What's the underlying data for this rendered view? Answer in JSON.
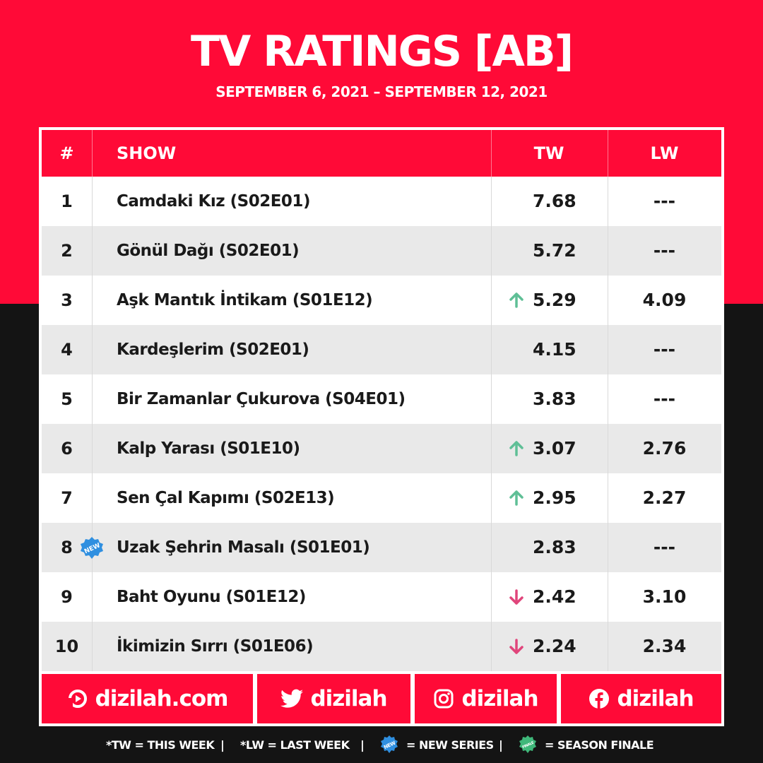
{
  "header": {
    "title": "TV RATINGS [AB]",
    "date_range": "SEPTEMBER 6, 2021 – SEPTEMBER 12, 2021"
  },
  "table": {
    "columns": {
      "rank": "#",
      "show": "SHOW",
      "tw": "TW",
      "lw": "LW"
    },
    "rows": [
      {
        "rank": "1",
        "show": "Camdaki Kız (S02E01)",
        "tw": "7.68",
        "lw": "---",
        "trend": "none",
        "is_new": false
      },
      {
        "rank": "2",
        "show": "Gönül Dağı (S02E01)",
        "tw": "5.72",
        "lw": "---",
        "trend": "none",
        "is_new": false
      },
      {
        "rank": "3",
        "show": "Aşk Mantık İntikam (S01E12)",
        "tw": "5.29",
        "lw": "4.09",
        "trend": "up",
        "is_new": false
      },
      {
        "rank": "4",
        "show": "Kardeşlerim (S02E01)",
        "tw": "4.15",
        "lw": "---",
        "trend": "none",
        "is_new": false
      },
      {
        "rank": "5",
        "show": "Bir Zamanlar Çukurova (S04E01)",
        "tw": "3.83",
        "lw": "---",
        "trend": "none",
        "is_new": false
      },
      {
        "rank": "6",
        "show": "Kalp Yarası (S01E10)",
        "tw": "3.07",
        "lw": "2.76",
        "trend": "up",
        "is_new": false
      },
      {
        "rank": "7",
        "show": "Sen Çal Kapımı (S02E13)",
        "tw": "2.95",
        "lw": "2.27",
        "trend": "up",
        "is_new": false
      },
      {
        "rank": "8",
        "show": "Uzak Şehrin Masalı (S01E01)",
        "tw": "2.83",
        "lw": "---",
        "trend": "none",
        "is_new": true
      },
      {
        "rank": "9",
        "show": "Baht Oyunu (S01E12)",
        "tw": "2.42",
        "lw": "3.10",
        "trend": "down",
        "is_new": false
      },
      {
        "rank": "10",
        "show": "İkimizin Sırrı (S01E06)",
        "tw": "2.24",
        "lw": "2.34",
        "trend": "down",
        "is_new": false
      }
    ],
    "new_badge_label": "NEW"
  },
  "footer": {
    "website": {
      "icon": "dizilah-logo-icon",
      "label": "dizilah.com"
    },
    "twitter": {
      "icon": "twitter-icon",
      "label": "dizilah"
    },
    "instagram": {
      "icon": "instagram-icon",
      "label": "dizilah"
    },
    "facebook": {
      "icon": "facebook-icon",
      "label": "dizilah"
    }
  },
  "legend": {
    "tw": "*TW  =  THIS WEEK",
    "lw": "*LW  =  LAST WEEK",
    "new": "=  NEW SERIES",
    "finale": "=  SEASON FINALE",
    "separator": "|",
    "new_badge": "NEW",
    "finale_badge": "FINALE"
  },
  "colors": {
    "brand_red": "#ff0a37",
    "dark_bg": "#141414",
    "up_arrow": "#5fbf96",
    "down_arrow": "#e0457b",
    "new_badge": "#2f8fe0",
    "finale_badge": "#3fb87a"
  }
}
